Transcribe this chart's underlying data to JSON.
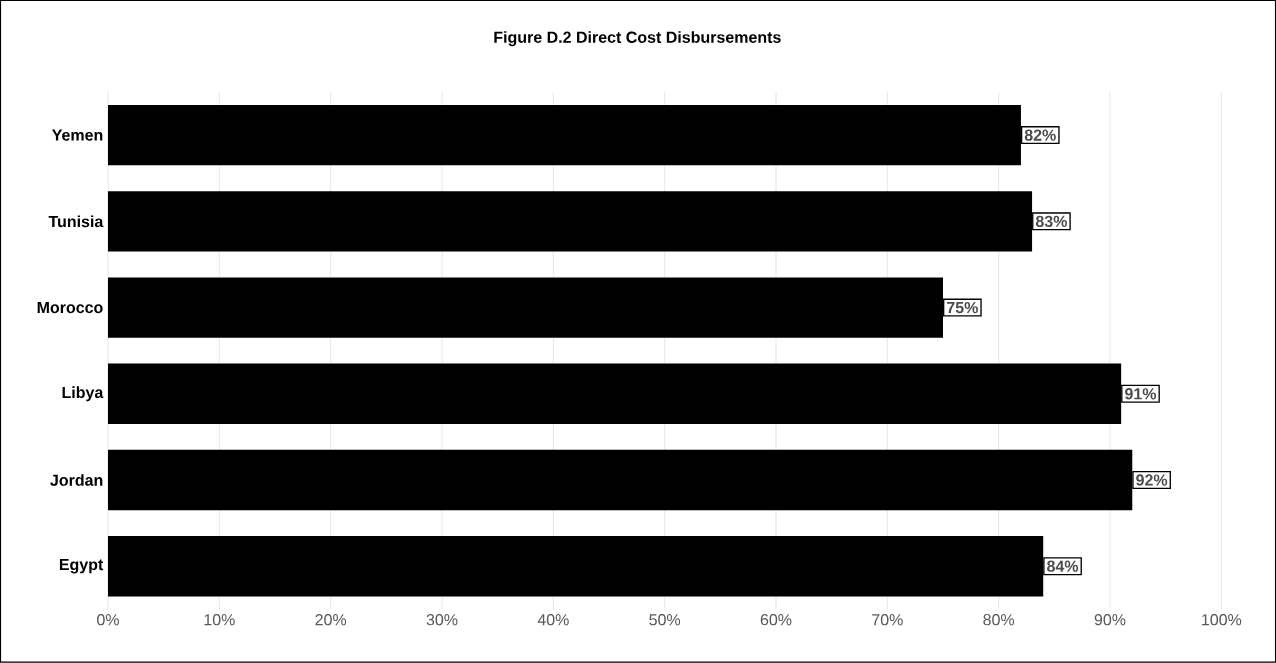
{
  "chart_data": {
    "type": "bar",
    "orientation": "horizontal",
    "title": "Figure D.2 Direct Cost Disbursements",
    "categories": [
      "Yemen",
      "Tunisia",
      "Morocco",
      "Libya",
      "Jordan",
      "Egypt"
    ],
    "values": [
      82,
      83,
      75,
      91,
      92,
      84
    ],
    "value_labels": [
      "82%",
      "83%",
      "75%",
      "91%",
      "92%",
      "84%"
    ],
    "color": "#000000",
    "grid": "x",
    "xlim": [
      0,
      100
    ],
    "xticks": [
      {
        "value": 0,
        "label": "0%"
      },
      {
        "value": 10,
        "label": "10%"
      },
      {
        "value": 20,
        "label": "20%"
      },
      {
        "value": 30,
        "label": "30%"
      },
      {
        "value": 40,
        "label": "40%"
      },
      {
        "value": 50,
        "label": "50%"
      },
      {
        "value": 60,
        "label": "60%"
      },
      {
        "value": 70,
        "label": "70%"
      },
      {
        "value": 80,
        "label": "80%"
      },
      {
        "value": 90,
        "label": "90%"
      },
      {
        "value": 100,
        "label": "100%"
      }
    ]
  }
}
